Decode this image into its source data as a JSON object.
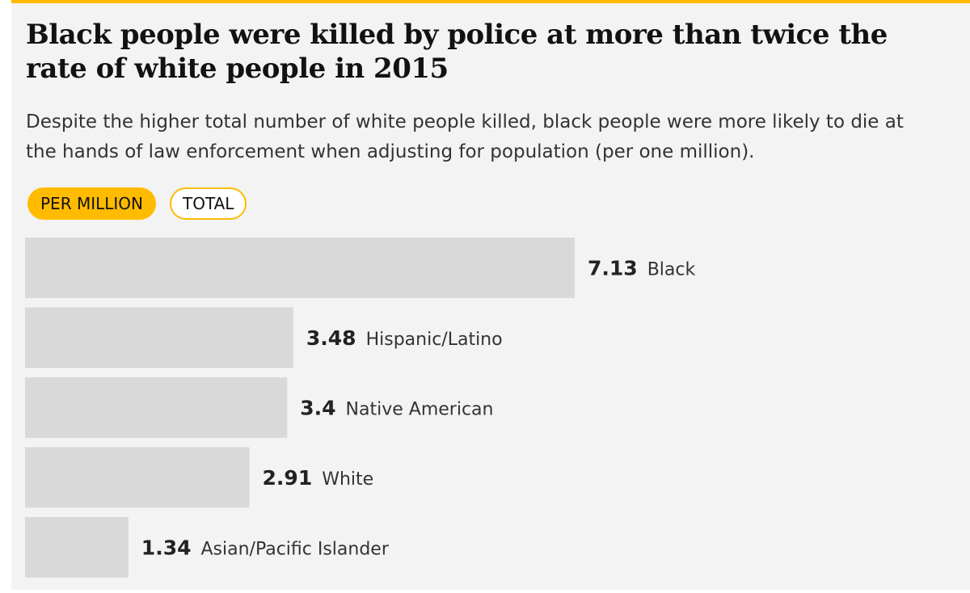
{
  "headline": "Black people were killed by police at more than twice the rate of white people in 2015",
  "standfirst": "Despite the higher total number of white people killed, black people were more likely to die at the hands of law enforcement when adjusting for population (per one million).",
  "toggles": {
    "per_million": "PER MILLION",
    "total": "TOTAL",
    "selected": "per_million"
  },
  "colors": {
    "accent": "#ffbb00",
    "bar": "#d9d9d9",
    "background": "#f3f3f3"
  },
  "chart_data": {
    "type": "bar",
    "orientation": "horizontal",
    "categories": [
      "Black",
      "Hispanic/Latino",
      "Native American",
      "White",
      "Asian/Pacific Islander"
    ],
    "values": [
      7.13,
      3.48,
      3.4,
      2.91,
      1.34
    ],
    "value_labels": [
      "7.13",
      "3.48",
      "3.4",
      "2.91",
      "1.34"
    ],
    "xlim": [
      0,
      7.13
    ],
    "grid": false,
    "legend": "none"
  }
}
